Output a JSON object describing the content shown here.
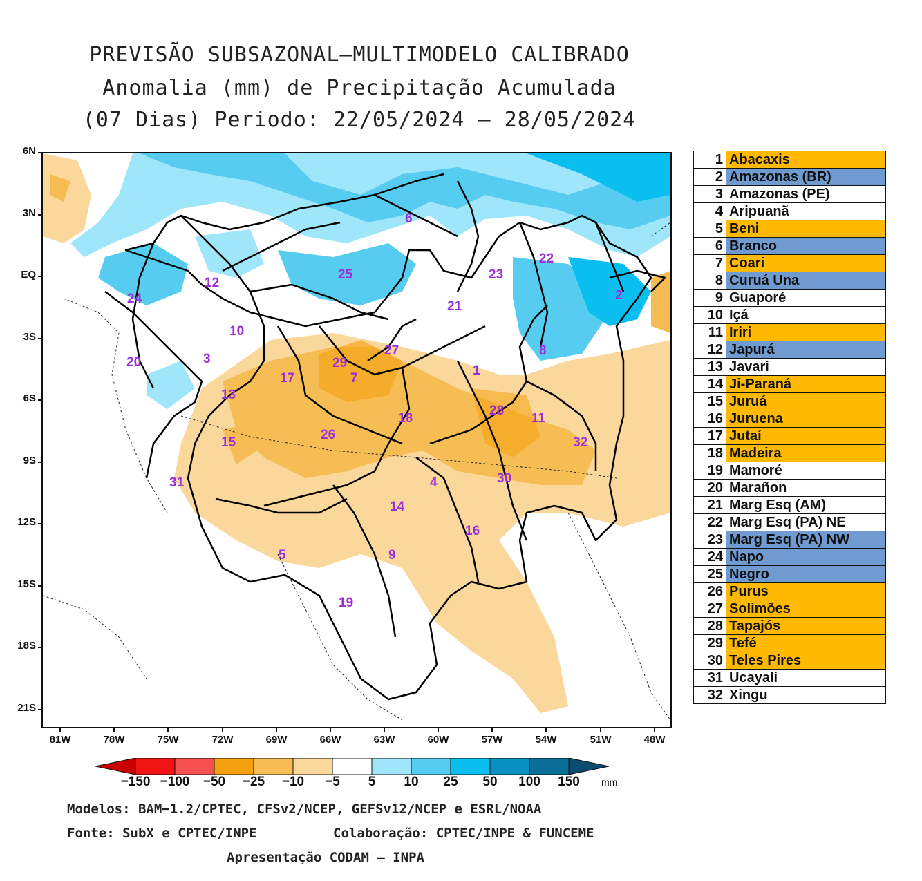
{
  "title": {
    "line1": "PREVISÃO SUBSAZONAL—MULTIMODELO CALIBRADO",
    "line2": "Anomalia (mm) de Precipitação Acumulada",
    "line3": "(07 Dias) Periodo: 22/05/2024 – 28/05/2024"
  },
  "axes": {
    "y_ticks": [
      "6N",
      "3N",
      "EQ",
      "3S",
      "6S",
      "9S",
      "12S",
      "15S",
      "18S",
      "21S"
    ],
    "x_ticks": [
      "81W",
      "78W",
      "75W",
      "72W",
      "69W",
      "66W",
      "63W",
      "60W",
      "57W",
      "54W",
      "51W",
      "48W"
    ]
  },
  "regions_on_map": [
    "1",
    "2",
    "3",
    "4",
    "5",
    "6",
    "7",
    "8",
    "9",
    "10",
    "11",
    "12",
    "13",
    "14",
    "15",
    "16",
    "17",
    "18",
    "19",
    "20",
    "21",
    "22",
    "23",
    "24",
    "25",
    "26",
    "27",
    "28",
    "29",
    "30",
    "31",
    "32"
  ],
  "legend": [
    {
      "num": "1",
      "name": "Abacaxis",
      "status": "dry"
    },
    {
      "num": "2",
      "name": "Amazonas (BR)",
      "status": "wet"
    },
    {
      "num": "3",
      "name": "Amazonas (PE)",
      "status": "neutral"
    },
    {
      "num": "4",
      "name": "Aripuanã",
      "status": "neutral"
    },
    {
      "num": "5",
      "name": "Beni",
      "status": "dry"
    },
    {
      "num": "6",
      "name": "Branco",
      "status": "wet"
    },
    {
      "num": "7",
      "name": "Coari",
      "status": "dry"
    },
    {
      "num": "8",
      "name": "Curuá Una",
      "status": "wet"
    },
    {
      "num": "9",
      "name": "Guaporé",
      "status": "neutral"
    },
    {
      "num": "10",
      "name": "Içá",
      "status": "neutral"
    },
    {
      "num": "11",
      "name": "Iriri",
      "status": "dry"
    },
    {
      "num": "12",
      "name": "Japurá",
      "status": "wet"
    },
    {
      "num": "13",
      "name": "Javari",
      "status": "neutral"
    },
    {
      "num": "14",
      "name": "Ji-Paraná",
      "status": "dry"
    },
    {
      "num": "15",
      "name": "Juruá",
      "status": "dry"
    },
    {
      "num": "16",
      "name": "Juruena",
      "status": "dry"
    },
    {
      "num": "17",
      "name": "Jutaí",
      "status": "dry"
    },
    {
      "num": "18",
      "name": "Madeira",
      "status": "dry"
    },
    {
      "num": "19",
      "name": "Mamoré",
      "status": "neutral"
    },
    {
      "num": "20",
      "name": "Marañon",
      "status": "neutral"
    },
    {
      "num": "21",
      "name": "Marg Esq (AM)",
      "status": "neutral"
    },
    {
      "num": "22",
      "name": "Marg Esq (PA) NE",
      "status": "neutral"
    },
    {
      "num": "23",
      "name": "Marg Esq (PA) NW",
      "status": "wet"
    },
    {
      "num": "24",
      "name": "Napo",
      "status": "wet"
    },
    {
      "num": "25",
      "name": "Negro",
      "status": "wet"
    },
    {
      "num": "26",
      "name": "Purus",
      "status": "dry"
    },
    {
      "num": "27",
      "name": "Solimões",
      "status": "dry"
    },
    {
      "num": "28",
      "name": "Tapajós",
      "status": "dry"
    },
    {
      "num": "29",
      "name": "Tefé",
      "status": "dry"
    },
    {
      "num": "30",
      "name": "Teles Pires",
      "status": "dry"
    },
    {
      "num": "31",
      "name": "Ucayali",
      "status": "neutral"
    },
    {
      "num": "32",
      "name": "Xingu",
      "status": "neutral"
    }
  ],
  "legend_colors": {
    "dry": "#ffb900",
    "wet": "#6f9bd1",
    "neutral": "#ffffff"
  },
  "colorbar": {
    "labels": [
      "−150",
      "−100",
      "−50",
      "−25",
      "−10",
      "−5",
      "5",
      "10",
      "25",
      "50",
      "100",
      "150"
    ],
    "unit": "mm",
    "colors": [
      "#c80000",
      "#f01414",
      "#f55050",
      "#f5a00f",
      "#f7bd55",
      "#fad79b",
      "#ffffff",
      "#9fe6fa",
      "#55ccf0",
      "#0abef0",
      "#0a91c3",
      "#0a6e96",
      "#0a4b6e"
    ]
  },
  "footer": {
    "models": "Modelos: BAM−1.2/CPTEC, CFSv2/NCEP, GEFSv12/NCEP e ESRL/NOAA",
    "source": "Fonte: SubX e CPTEC/INPE",
    "collab": "Colaboração: CPTEC/INPE & FUNCEME",
    "presentation": "Apresentação CODAM – INPA"
  }
}
